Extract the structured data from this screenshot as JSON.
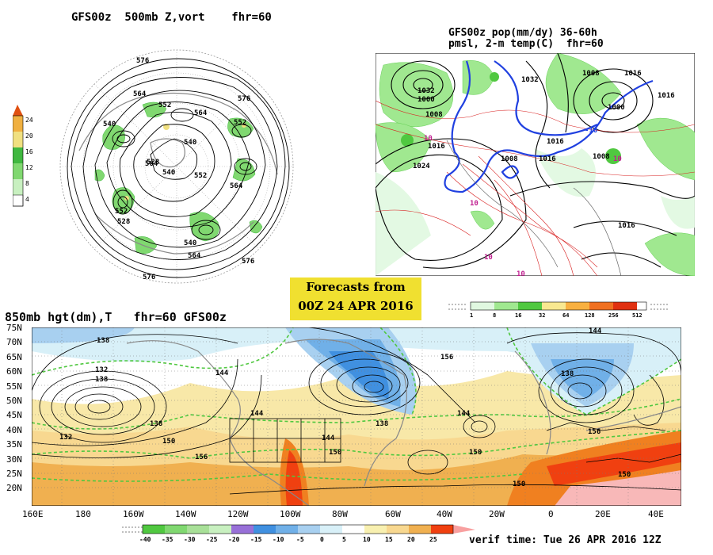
{
  "panel_500mb": {
    "title": "GFS00z  500mb Z,vort    fhr=60",
    "contour_labels": [
      "576",
      "564",
      "552",
      "540",
      "528",
      "540",
      "552",
      "564",
      "576",
      "576",
      "564",
      "552",
      "540",
      "564",
      "552",
      "540",
      "528",
      "564",
      "576"
    ],
    "colorbar": {
      "ticks": [
        "24",
        "20",
        "16",
        "12",
        "8",
        "4"
      ],
      "colors": [
        "#ffffff",
        "#c8f0c0",
        "#80d870",
        "#40b840",
        "#f0e080",
        "#f0b040",
        "#e05010"
      ]
    }
  },
  "panel_pop": {
    "title_line1": "GFS00z pop(mm/dy) 36-60h",
    "title_line2": "pmsl, 2-m temp(C)  fhr=60",
    "pressure_labels": [
      "1032",
      "1032",
      "1008",
      "1000",
      "1008",
      "1016",
      "1024",
      "1016",
      "1008",
      "1016",
      "1016",
      "1016",
      "1000",
      "1008",
      "1016"
    ],
    "temp_labels": [
      "10",
      "10",
      "-10",
      "10",
      "10",
      "10"
    ],
    "colorbar": {
      "ticks": [
        "1",
        "8",
        "16",
        "32",
        "64",
        "128",
        "256",
        "512"
      ],
      "colors": [
        "#e0f8e0",
        "#a0e890",
        "#50c840",
        "#f8e890",
        "#f8b040",
        "#f07020",
        "#e03010",
        "#ffffff"
      ]
    }
  },
  "banner": {
    "line1": "Forecasts from",
    "line2": "00Z 24 APR 2016"
  },
  "panel_850mb": {
    "title": "850mb hgt(dm),T   fhr=60 GFS00z",
    "lat_labels": [
      "75N",
      "70N",
      "65N",
      "60N",
      "55N",
      "50N",
      "45N",
      "40N",
      "35N",
      "30N",
      "25N",
      "20N"
    ],
    "lon_labels": [
      "160E",
      "180",
      "160W",
      "140W",
      "120W",
      "100W",
      "80W",
      "60W",
      "40W",
      "20W",
      "0",
      "20E",
      "40E"
    ],
    "height_labels": [
      "138",
      "132",
      "138",
      "138",
      "150",
      "156",
      "144",
      "144",
      "132",
      "138",
      "144",
      "156",
      "150",
      "150",
      "144",
      "138",
      "144",
      "150",
      "150",
      "156"
    ],
    "colorbar": {
      "ticks": [
        "-40",
        "-35",
        "-30",
        "-25",
        "-20",
        "-15",
        "-10",
        "-5",
        "0",
        "5",
        "10",
        "15",
        "20",
        "25"
      ],
      "colors": [
        "#50c840",
        "#80d870",
        "#a8e098",
        "#c8f0c0",
        "#9870d8",
        "#4090e0",
        "#70b0e8",
        "#a8d0f0",
        "#d8f0f8",
        "#ffffff",
        "#f8f0b0",
        "#f8d890",
        "#f0b050",
        "#f08020",
        "#f04010",
        "#f8a0a0"
      ]
    },
    "verif_time": "verif time: Tue 26 APR 2016 12Z"
  }
}
